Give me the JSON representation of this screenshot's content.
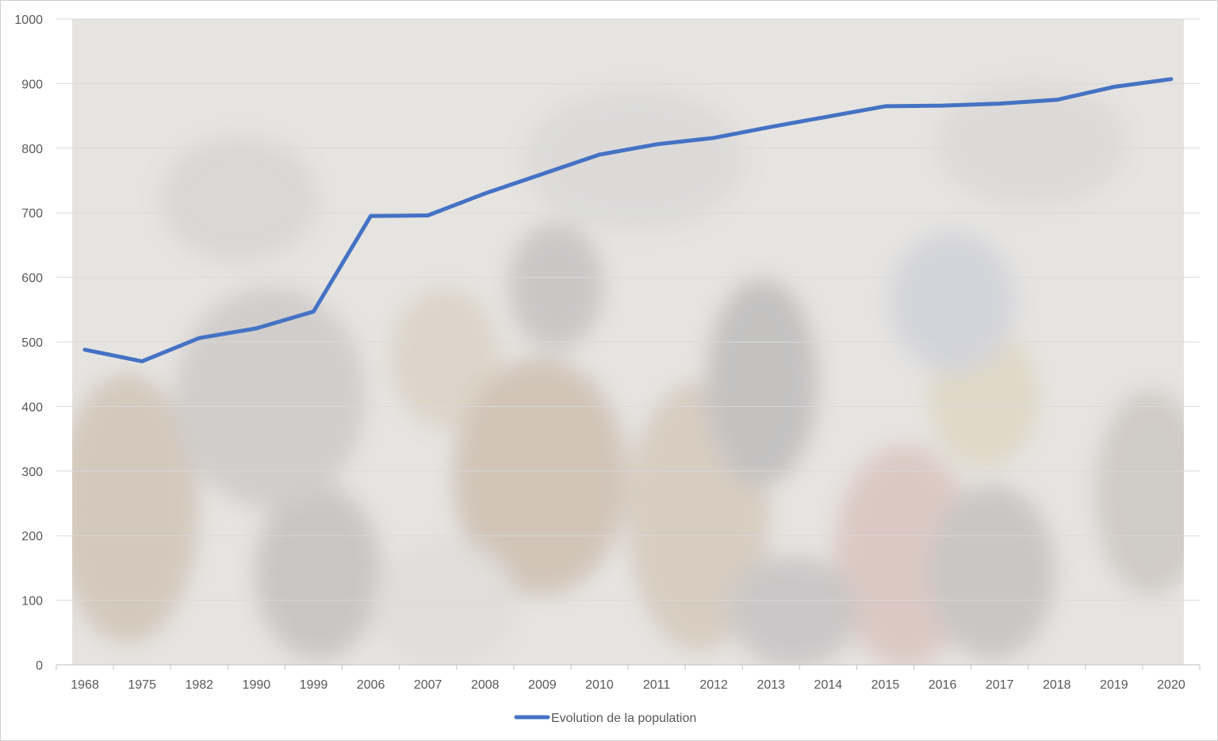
{
  "chart_data": {
    "type": "line",
    "categories": [
      "1968",
      "1975",
      "1982",
      "1990",
      "1999",
      "2006",
      "2007",
      "2008",
      "2009",
      "2010",
      "2011",
      "2012",
      "2013",
      "2014",
      "2015",
      "2016",
      "2017",
      "2018",
      "2019",
      "2020"
    ],
    "series": [
      {
        "name": "Evolution de la population",
        "values": [
          488,
          470,
          506,
          521,
          547,
          695,
          696,
          730,
          760,
          790,
          806,
          816,
          833,
          849,
          865,
          866,
          869,
          875,
          895,
          907
        ],
        "color": "#4472C4"
      }
    ],
    "ylim": [
      0,
      1000
    ],
    "yticks": [
      "0",
      "100",
      "200",
      "300",
      "400",
      "500",
      "600",
      "700",
      "800",
      "900",
      "1000"
    ],
    "grid": true,
    "legend_position": "bottom-center",
    "background": "photo-of-crowd-faded"
  }
}
